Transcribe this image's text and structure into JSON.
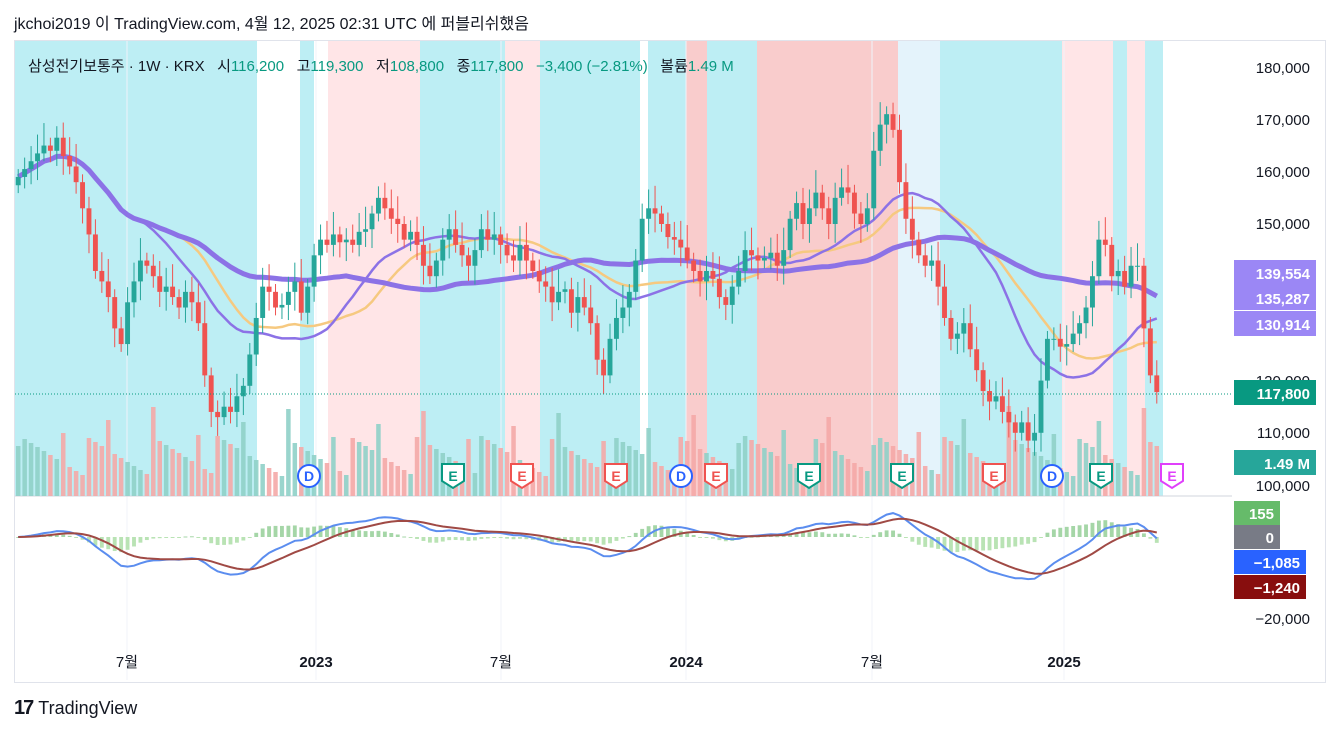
{
  "header": {
    "text": "jkchoi2019 이 TradingView.com, 4월 12, 2025 02:31 UTC 에 퍼블리쉬했음"
  },
  "legend": {
    "symbol": "삼성전기보통주 · 1W · KRX",
    "open_label": "시",
    "open_value": "116,200",
    "high_label": "고",
    "high_value": "119,300",
    "low_label": "저",
    "low_value": "108,800",
    "close_label": "종",
    "close_value": "117,800",
    "change_value": "−3,400 (−2.81%)",
    "volume_label": "볼륨",
    "volume_value": "1.49 M"
  },
  "footer": {
    "logo": "17",
    "brand": "TradingView"
  },
  "colors": {
    "up": "#26a69a",
    "down": "#ef5350",
    "bg_blue": "#b2ebf2",
    "bg_pink": "#ffe0e3",
    "bg_red": "#f8c3c3",
    "bg_lightblue": "#dff1fa",
    "ma_purple": "#8c72e6",
    "ma_orange": "#f6c980",
    "macd_line": "#5b8def",
    "signal_line": "#a04a45"
  },
  "chart_data": {
    "type": "candlestick",
    "y_axis_ticks": [
      "180,000",
      "170,000",
      "160,000",
      "150,000",
      "120,000",
      "110,000",
      "100,000"
    ],
    "ylim": [
      97000,
      185000
    ],
    "x_axis_labels": [
      "7월",
      "2023",
      "7월",
      "2024",
      "7월",
      "2025"
    ],
    "price_labels": [
      {
        "value": "139,554",
        "color": "#9b87f5"
      },
      {
        "value": "135,287",
        "color": "#9b87f5"
      },
      {
        "value": "130,914",
        "color": "#9b87f5"
      },
      {
        "value": "117,800",
        "color": "#089981"
      },
      {
        "value": "1.49 M",
        "color": "#26a69a"
      }
    ],
    "event_markers": [
      "D",
      "E",
      "E",
      "E",
      "D",
      "E",
      "E",
      "E",
      "E",
      "D",
      "E",
      "E"
    ],
    "indicator_labels": [
      {
        "value": "155",
        "color": "#66bb6a"
      },
      {
        "value": "0",
        "color": "#787b86"
      },
      {
        "value": "−1,085",
        "color": "#2962ff"
      },
      {
        "value": "−1,240",
        "color": "#880e0e"
      }
    ],
    "indicator_axis_ticks": [
      "−20,000"
    ],
    "last_candle": {
      "open": 116200,
      "high": 119300,
      "low": 108800,
      "close": 117800
    },
    "weekly_closes": [
      159000,
      160500,
      162000,
      163500,
      165000,
      164000,
      166500,
      163000,
      161000,
      158000,
      153000,
      148000,
      141000,
      139000,
      136000,
      130000,
      127000,
      135000,
      139000,
      143000,
      142000,
      140000,
      137000,
      138000,
      136000,
      134000,
      137000,
      135000,
      131000,
      121000,
      114000,
      113000,
      115000,
      114000,
      117000,
      119000,
      125000,
      132000,
      138000,
      137000,
      134000,
      134500,
      137000,
      139000,
      133000,
      138000,
      144000,
      147000,
      146000,
      148000,
      146500,
      147000,
      146000,
      148500,
      149000,
      152000,
      155000,
      153000,
      151000,
      150000,
      147000,
      148500,
      146000,
      142000,
      140000,
      143000,
      147000,
      149000,
      146000,
      144000,
      142000,
      145000,
      149000,
      147000,
      148000,
      146000,
      144000,
      143000,
      146000,
      143000,
      141000,
      139000,
      138000,
      135000,
      137000,
      137500,
      133000,
      136000,
      134000,
      131000,
      124000,
      121000,
      128000,
      132000,
      134000,
      137000,
      143000,
      151000,
      153000,
      152000,
      150000,
      147500,
      147000,
      145500,
      143000,
      141000,
      139000,
      141000,
      139500,
      136000,
      134500,
      138000,
      141000,
      145000,
      144000,
      143000,
      143500,
      144500,
      142000,
      145000,
      151000,
      154000,
      150000,
      153000,
      156000,
      153000,
      150000,
      155000,
      157000,
      156000,
      152000,
      150000,
      153000,
      164000,
      169000,
      171000,
      168000,
      158000,
      151000,
      147000,
      144000,
      142000,
      143000,
      138000,
      132000,
      128000,
      129000,
      131000,
      126000,
      122000,
      118000,
      116000,
      117000,
      114000,
      112000,
      110000,
      112000,
      108500,
      110000,
      120000,
      128000,
      128000,
      126500,
      127000,
      129000,
      131000,
      134000,
      140000,
      147000,
      146000,
      140000,
      141000,
      138000,
      142000,
      142000,
      130000,
      121000,
      117800
    ]
  }
}
